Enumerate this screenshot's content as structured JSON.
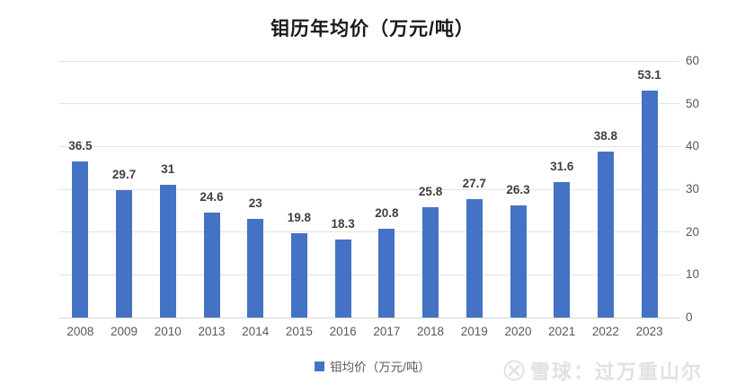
{
  "chart_data": {
    "type": "bar",
    "title": "钼历年均价（万元/吨）",
    "categories": [
      "2008",
      "2009",
      "2010",
      "2013",
      "2014",
      "2015",
      "2016",
      "2017",
      "2018",
      "2019",
      "2020",
      "2021",
      "2022",
      "2023"
    ],
    "values": [
      36.5,
      29.7,
      31,
      24.6,
      23,
      19.8,
      18.3,
      20.8,
      25.8,
      27.7,
      26.3,
      31.6,
      38.8,
      53.1
    ],
    "value_labels": [
      "36.5",
      "29.7",
      "31",
      "24.6",
      "23",
      "19.8",
      "18.3",
      "20.8",
      "25.8",
      "27.7",
      "26.3",
      "31.6",
      "38.8",
      "53.1"
    ],
    "series": [
      {
        "name": "钼均价（万元/吨）",
        "values": [
          36.5,
          29.7,
          31,
          24.6,
          23,
          19.8,
          18.3,
          20.8,
          25.8,
          27.7,
          26.3,
          31.6,
          38.8,
          53.1
        ]
      }
    ],
    "xlabel": "",
    "ylabel": "",
    "ylim": [
      0,
      60
    ],
    "y_ticks": [
      0,
      10,
      20,
      30,
      40,
      50,
      60
    ],
    "y_axis_side": "right",
    "grid": true,
    "legend_position": "bottom",
    "bar_color": "#4472C4",
    "gridline_color": "#e3e3e3"
  },
  "legend": {
    "label": "钼均价（万元/吨）"
  },
  "watermark": {
    "source_label": "雪球：过万重山尔",
    "logo": "xueqiu-logo"
  }
}
